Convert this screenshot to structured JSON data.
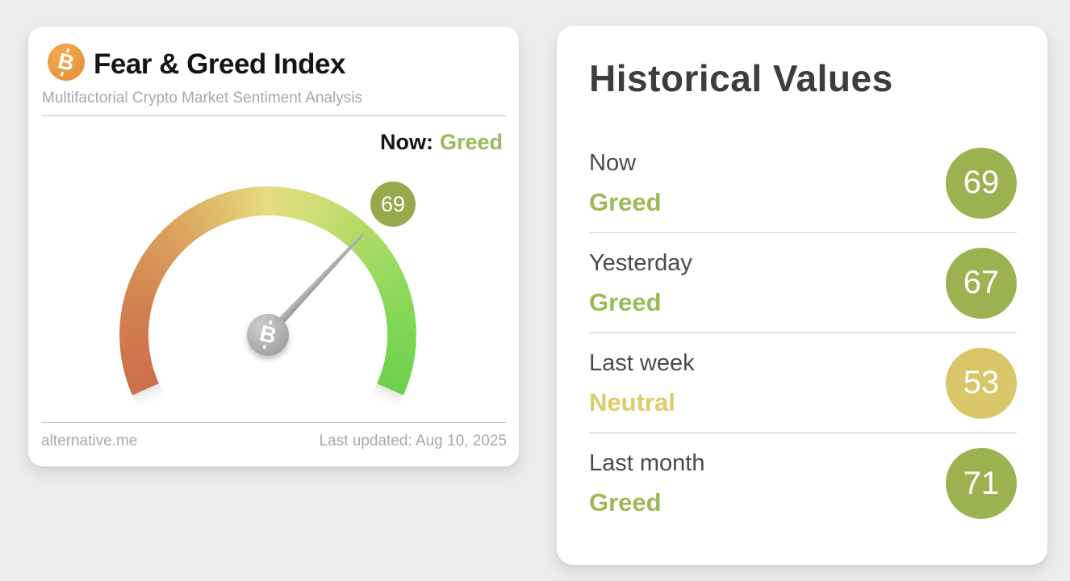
{
  "colors": {
    "page_background": "#ececec",
    "bitcoin_orange": "#e9973d",
    "greed_green": "#9bba56",
    "neutral_yellow": "#decb68",
    "badge_green": "#9bb251",
    "badge_yellow": "#d9c668",
    "gauge_badge_green": "#95ab4b",
    "needle_gray": "#9b9b9b"
  },
  "fear_greed_card": {
    "title": "Fear & Greed Index",
    "subtitle": "Multifactorial Crypto Market Sentiment Analysis",
    "now_label": "Now:",
    "now_classification": "Greed",
    "source_link": "alternative.me",
    "last_updated": "Last updated: Aug 10, 2025",
    "btc_symbol": "B",
    "bitcoin_icon": "bitcoin-icon"
  },
  "gauge": {
    "value": 69,
    "min": 0,
    "max": 100,
    "start_angle_deg": 204,
    "sweep_deg": 228,
    "value_badge": "69",
    "scale_colors": [
      "#cb6e4a",
      "#daa05d",
      "#e6dc80",
      "#aeda66",
      "#6ecf4b"
    ]
  },
  "historical": {
    "title": "Historical Values",
    "rows": [
      {
        "label": "Now",
        "classification": "Greed",
        "value": "69",
        "text_color": "#9bba56",
        "badge_color": "#9bb251"
      },
      {
        "label": "Yesterday",
        "classification": "Greed",
        "value": "67",
        "text_color": "#9bba56",
        "badge_color": "#9bb251"
      },
      {
        "label": "Last week",
        "classification": "Neutral",
        "value": "53",
        "text_color": "#decb68",
        "badge_color": "#d9c668"
      },
      {
        "label": "Last month",
        "classification": "Greed",
        "value": "71",
        "text_color": "#9bba56",
        "badge_color": "#9bb251"
      }
    ]
  },
  "chart_data": {
    "type": "gauge",
    "title": "Fear & Greed Index",
    "value": 69,
    "min": 0,
    "max": 100,
    "classification": "Greed",
    "history": [
      {
        "label": "Now",
        "value": 69,
        "classification": "Greed"
      },
      {
        "label": "Yesterday",
        "value": 67,
        "classification": "Greed"
      },
      {
        "label": "Last week",
        "value": 53,
        "classification": "Neutral"
      },
      {
        "label": "Last month",
        "value": 71,
        "classification": "Greed"
      }
    ]
  }
}
